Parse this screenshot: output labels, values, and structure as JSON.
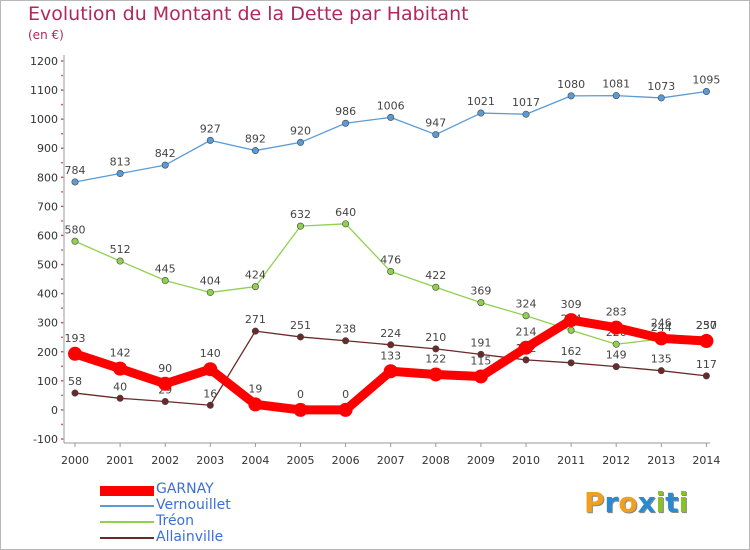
{
  "title": "Evolution du Montant de la Dette par Habitant",
  "subtitle": "(en €)",
  "brand": {
    "letters": [
      "P",
      "r",
      "o",
      "x",
      "i",
      "t",
      "i"
    ],
    "colors": [
      "#f0a020",
      "#2a8ad0",
      "#f0a020",
      "#2a8ad0",
      "#8ac02a",
      "#2a8ad0",
      "#8ac02a"
    ]
  },
  "chart_data": {
    "type": "line",
    "x": [
      "2000",
      "2001",
      "2002",
      "2003",
      "2004",
      "2005",
      "2006",
      "2007",
      "2008",
      "2009",
      "2010",
      "2011",
      "2012",
      "2013",
      "2014"
    ],
    "yticks": [
      "-100",
      "0",
      "100",
      "200",
      "300",
      "400",
      "500",
      "600",
      "700",
      "800",
      "900",
      "1000",
      "1100",
      "1200"
    ],
    "ylim": [
      -100,
      1200
    ],
    "grid": false,
    "legend_position": "bottom-left",
    "series": [
      {
        "name": "Vernouillet",
        "color": "#5b9bd5",
        "values": [
          784,
          813,
          842,
          927,
          892,
          920,
          986,
          1006,
          947,
          1021,
          1017,
          1080,
          1081,
          1073,
          1095
        ],
        "labels": [
          "784",
          "813",
          "842",
          "927",
          "892",
          "920",
          "986",
          "1006",
          "947",
          "1021",
          "1017",
          "1080",
          "1081",
          "1073",
          "1095"
        ]
      },
      {
        "name": "Tréon",
        "color": "#8fd14f",
        "values": [
          580,
          512,
          445,
          404,
          424,
          632,
          640,
          476,
          422,
          369,
          324,
          274,
          226,
          244,
          250
        ],
        "labels": [
          "580",
          "512",
          "445",
          "404",
          "424",
          "632",
          "640",
          "476",
          "422",
          "369",
          "324",
          "274",
          "226",
          "244",
          "250"
        ]
      },
      {
        "name": "Allainville",
        "color": "#6b2a2a",
        "values": [
          58,
          40,
          29,
          16,
          271,
          251,
          238,
          224,
          210,
          191,
          172,
          162,
          149,
          135,
          117
        ],
        "labels": [
          "58",
          "40",
          "29",
          "16",
          "271",
          "251",
          "238",
          "224",
          "210",
          "191",
          "172",
          "162",
          "149",
          "135",
          "117"
        ]
      },
      {
        "name": "GARNAY",
        "color": "#ff0000",
        "values": [
          193,
          142,
          90,
          140,
          19,
          0,
          0,
          133,
          122,
          115,
          214,
          309,
          283,
          246,
          237
        ],
        "labels": [
          "193",
          "142",
          "90",
          "140",
          "19",
          "0",
          "0",
          "133",
          "122",
          "115",
          "214",
          "309",
          "283",
          "246",
          "237"
        ]
      }
    ],
    "legend": [
      {
        "name": "GARNAY",
        "color": "#ff0000"
      },
      {
        "name": "Vernouillet",
        "color": "#5b9bd5"
      },
      {
        "name": "Tréon",
        "color": "#8fd14f"
      },
      {
        "name": "Allainville",
        "color": "#6b2a2a"
      }
    ]
  }
}
